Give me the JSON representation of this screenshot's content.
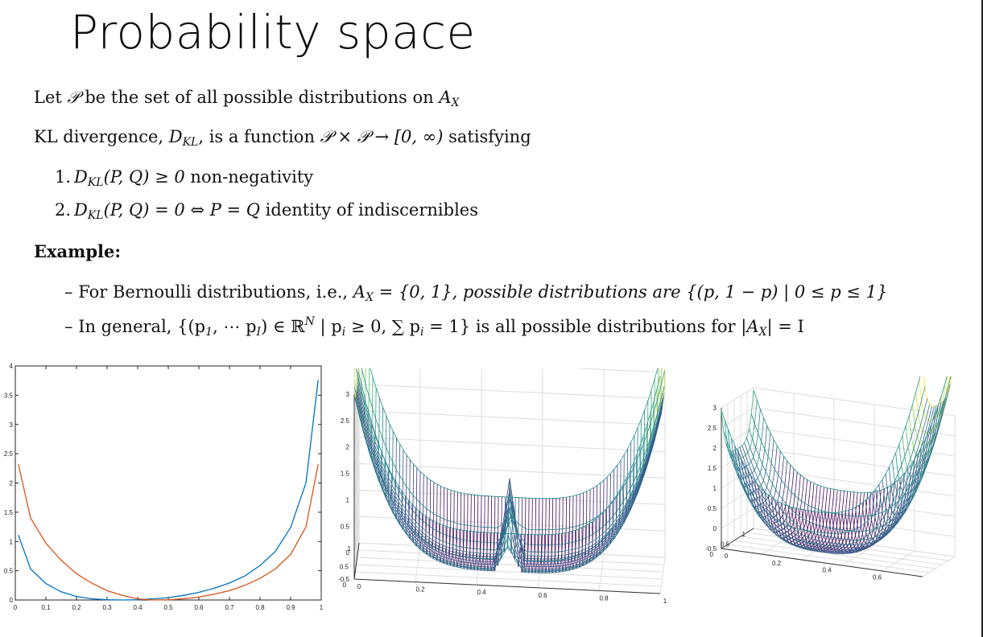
{
  "title": "Probability space",
  "intro": {
    "before": "Let ",
    "P": "𝒫",
    "mid": " be the set of all possible distributions on ",
    "A": "A",
    "A_sub": "X"
  },
  "kl_line": {
    "t1": "KL divergence, ",
    "D": "D",
    "D_sub": "KL",
    "t2": ", is a function ",
    "expr": "𝒫 × 𝒫 → [0, ∞)",
    "t3": " satisfying"
  },
  "properties": [
    {
      "num": "1.",
      "D": "D",
      "D_sub": "KL",
      "formula": "(P, Q) ≥ 0",
      "text": " non-negativity"
    },
    {
      "num": "2.",
      "D": "D",
      "D_sub": "KL",
      "formula": "(P, Q) = 0 ⇔ P = Q",
      "text": " identity of indiscernibles"
    }
  ],
  "example_heading": "Example:",
  "examples": [
    {
      "dash": "–",
      "t1": "For Bernoulli distributions, i.e., ",
      "A": "A",
      "A_sub": "X",
      "t2": " = {0, 1}, possible distributions are {(p, 1 − p) | 0 ≤ p ≤ 1}"
    },
    {
      "dash": "–",
      "t1": "In general, {(p",
      "s1": "1",
      "t2": ", ⋯ p",
      "s2": "I",
      "t3": ") ∈ ℝ",
      "sup": "N",
      "t4": " | p",
      "s3": "i",
      "t5": " ≥ 0, ∑ p",
      "s4": "i",
      "t6": " = 1} is all possible distributions for |",
      "A": "A",
      "A_sub": "X",
      "t7": "| = I"
    }
  ],
  "chart_data": [
    {
      "type": "line",
      "title": "",
      "xlabel": "",
      "ylabel": "",
      "xlim": [
        0,
        1
      ],
      "ylim": [
        0,
        4
      ],
      "x_ticks": [
        "0",
        "0.1",
        "0.2",
        "0.3",
        "0.4",
        "0.5",
        "0.6",
        "0.7",
        "0.8",
        "0.9",
        "1"
      ],
      "y_ticks": [
        "0",
        "0.5",
        "1",
        "1.5",
        "2",
        "2.5",
        "3",
        "3.5",
        "4"
      ],
      "grid": false,
      "colors": [
        "#0072bd",
        "#d95319"
      ],
      "series": [
        {
          "x": [
            0.01,
            0.05,
            0.1,
            0.15,
            0.2,
            0.25,
            0.3,
            0.35,
            0.4,
            0.45,
            0.5,
            0.55,
            0.6,
            0.65,
            0.7,
            0.75,
            0.8,
            0.85,
            0.9,
            0.95,
            0.99
          ],
          "values": [
            1.11,
            0.53,
            0.28,
            0.14,
            0.06,
            0.02,
            0.004,
            0.0,
            0.004,
            0.02,
            0.04,
            0.08,
            0.13,
            0.2,
            0.29,
            0.41,
            0.59,
            0.83,
            1.24,
            2.0,
            3.76
          ]
        },
        {
          "x": [
            0.01,
            0.05,
            0.1,
            0.15,
            0.2,
            0.25,
            0.3,
            0.35,
            0.4,
            0.45,
            0.5,
            0.55,
            0.6,
            0.65,
            0.7,
            0.75,
            0.8,
            0.85,
            0.9,
            0.95,
            0.99
          ],
          "values": [
            2.32,
            1.4,
            0.97,
            0.68,
            0.45,
            0.29,
            0.16,
            0.08,
            0.02,
            0.0,
            0.004,
            0.02,
            0.05,
            0.1,
            0.16,
            0.25,
            0.37,
            0.53,
            0.78,
            1.25,
            2.32
          ]
        }
      ]
    },
    {
      "type": "surface",
      "title": "",
      "x_ticks": [
        "0",
        "0.2",
        "0.4",
        "0.6",
        "0.8",
        "1"
      ],
      "y_ticks": [
        "0",
        "0.5",
        "1"
      ],
      "z_ticks": [
        "-0.5",
        "0",
        "0.5",
        "1",
        "1.5",
        "2",
        "2.5",
        "3"
      ],
      "zlim": [
        -0.5,
        3
      ],
      "grid": true,
      "colormap": [
        "#440154",
        "#3b528b",
        "#21918c",
        "#5ec962",
        "#fde725"
      ]
    },
    {
      "type": "surface",
      "title": "",
      "x_ticks": [
        "0",
        "0.2",
        "0.4",
        "0.6"
      ],
      "y_ticks": [
        "0",
        "0.5",
        "1"
      ],
      "z_ticks": [
        "-0.5",
        "0",
        "0.5",
        "1",
        "1.5",
        "2",
        "2.5",
        "3"
      ],
      "zlim": [
        -0.5,
        3
      ],
      "grid": true,
      "colormap": [
        "#440154",
        "#3b528b",
        "#21918c",
        "#5ec962",
        "#fde725"
      ]
    }
  ]
}
